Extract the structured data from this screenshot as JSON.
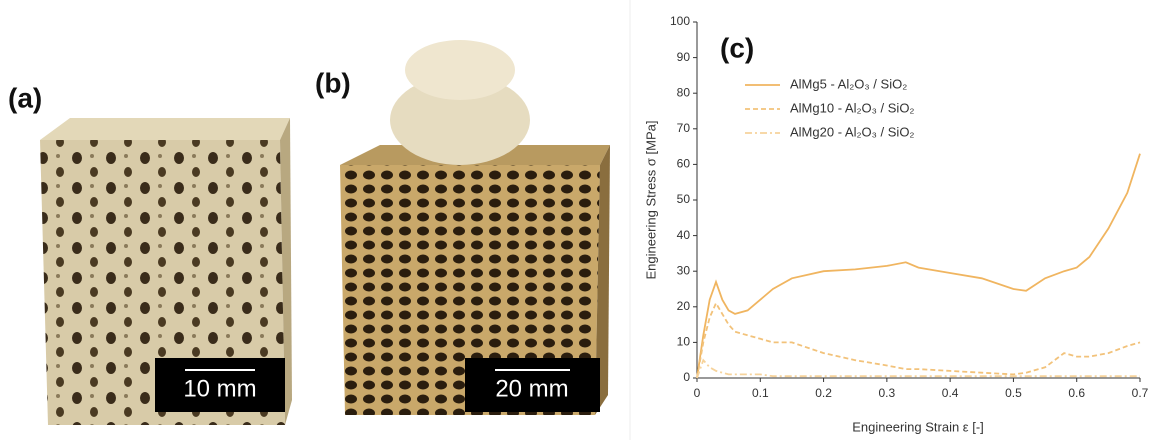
{
  "panels": {
    "a": {
      "label": "(a)",
      "scale_bar": "10 mm"
    },
    "b": {
      "label": "(b)",
      "scale_bar": "20 mm"
    }
  },
  "chart_data": {
    "type": "line",
    "panel_label": "(c)",
    "x_label": "Engineering Strain ε [-]",
    "y_label": "Engineering Stress σ [MPa]",
    "x": [
      0,
      0.01,
      0.02,
      0.03,
      0.04,
      0.05,
      0.06,
      0.08,
      0.1,
      0.12,
      0.15,
      0.2,
      0.25,
      0.3,
      0.33,
      0.35,
      0.4,
      0.45,
      0.5,
      0.52,
      0.55,
      0.58,
      0.6,
      0.62,
      0.65,
      0.68,
      0.7
    ],
    "series": [
      {
        "name": "AlMg5 - Al₂O₃ / SiO₂",
        "color": "#f0b560",
        "linestyle": "solid",
        "values": [
          0,
          12,
          22,
          27,
          22,
          19,
          18,
          19,
          22,
          25,
          28,
          30,
          30.5,
          31.5,
          32.5,
          31,
          29.5,
          28,
          25,
          24.5,
          28,
          30,
          31,
          34,
          42,
          52,
          63
        ]
      },
      {
        "name": "AlMg10 - Al₂O₃ / SiO₂",
        "color": "#f2c27a",
        "linestyle": "dashed",
        "values": [
          0,
          10,
          17,
          21,
          18,
          15,
          13,
          12,
          11,
          10,
          10,
          7,
          5,
          3.5,
          2.5,
          2.5,
          2,
          1.5,
          1,
          1.5,
          3,
          7,
          6,
          6,
          7,
          9,
          10
        ]
      },
      {
        "name": "AlMg20 - Al₂O₃ / SiO₂",
        "color": "#f6d39c",
        "linestyle": "dashdot",
        "values": [
          0,
          5,
          3,
          2,
          1.5,
          1,
          1,
          1,
          1,
          0.5,
          0.5,
          0.5,
          0.5,
          0.5,
          0.5,
          0.5,
          0.5,
          0.5,
          0.5,
          0.5,
          0.5,
          0.5,
          0.5,
          0.5,
          0.5,
          0.5,
          0.5
        ]
      }
    ],
    "xlim": [
      0,
      0.7
    ],
    "xticks": [
      0,
      0.1,
      0.2,
      0.3,
      0.4,
      0.5,
      0.6,
      0.7
    ],
    "ylim": [
      0,
      100
    ],
    "yticks": [
      0,
      10,
      20,
      30,
      40,
      50,
      60,
      70,
      80,
      90,
      100
    ]
  }
}
